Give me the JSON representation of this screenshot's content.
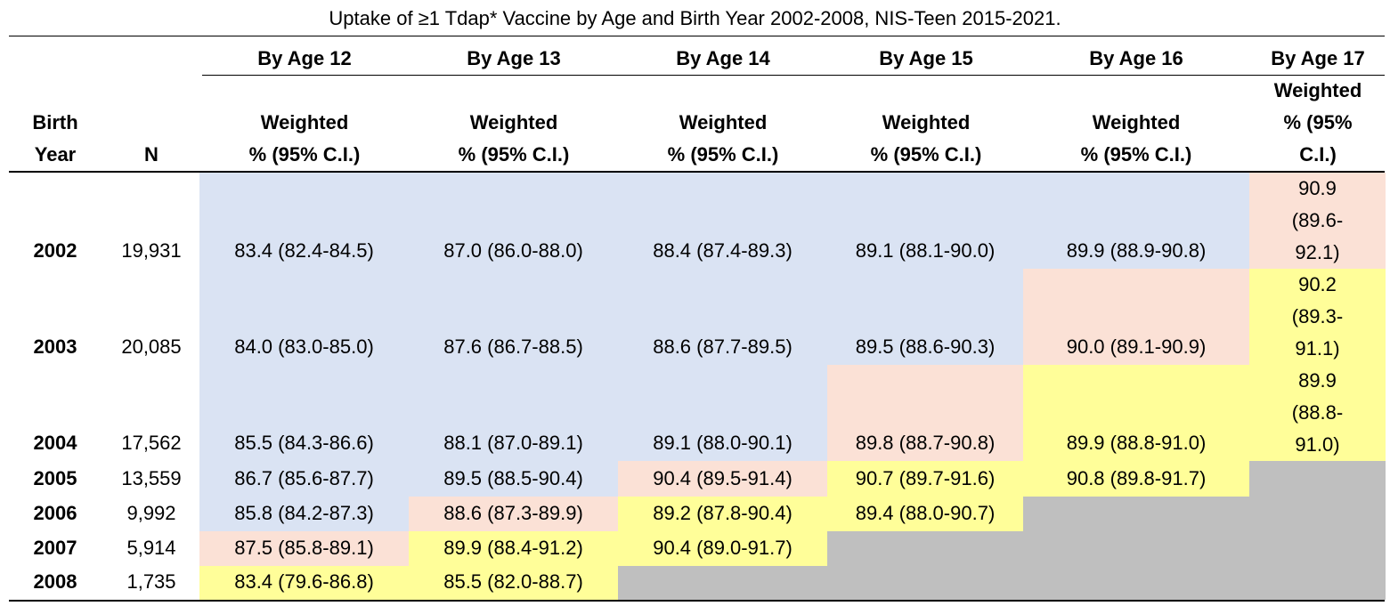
{
  "title": "Uptake of ≥1 Tdap* Vaccine by Age and Birth Year 2002-2008, NIS-Teen 2015-2021.",
  "colors": {
    "blue": "#dae3f3",
    "salmon": "#fbe1d6",
    "yellow": "#fffe99",
    "gray": "#bfbfbf"
  },
  "header": {
    "birth_year": [
      "Birth",
      "Year"
    ],
    "n": "N",
    "ages": [
      "By Age 12",
      "By Age 13",
      "By Age 14",
      "By Age 15",
      "By Age 16",
      "By Age 17"
    ],
    "weighted": [
      "Weighted",
      "% (95% C.I.)"
    ],
    "weighted17": [
      "Weighted",
      "% (95%",
      "C.I.)"
    ]
  },
  "rows": [
    {
      "year": "2002",
      "n": "19,931",
      "values": [
        "83.4 (82.4-84.5)",
        "87.0 (86.0-88.0)",
        "88.4 (87.4-89.3)",
        "89.1 (88.1-90.0)",
        "89.9 (88.9-90.8)"
      ],
      "age17": [
        "90.9",
        "(89.6-",
        "92.1)"
      ]
    },
    {
      "year": "2003",
      "n": "20,085",
      "values": [
        "84.0 (83.0-85.0)",
        "87.6 (86.7-88.5)",
        "88.6 (87.7-89.5)",
        "89.5 (88.6-90.3)",
        "90.0 (89.1-90.9)"
      ],
      "age17": [
        "90.2",
        "(89.3-",
        "91.1)"
      ]
    },
    {
      "year": "2004",
      "n": "17,562",
      "values": [
        "85.5 (84.3-86.6)",
        "88.1 (87.0-89.1)",
        "89.1 (88.0-90.1)",
        "89.8 (88.7-90.8)",
        "89.9 (88.8-91.0)"
      ],
      "age17": [
        "89.9",
        "(88.8-",
        "91.0)"
      ]
    },
    {
      "year": "2005",
      "n": "13,559",
      "values": [
        "86.7 (85.6-87.7)",
        "89.5 (88.5-90.4)",
        "90.4 (89.5-91.4)",
        "90.7 (89.7-91.6)",
        "90.8 (89.8-91.7)"
      ]
    },
    {
      "year": "2006",
      "n": "9,992",
      "values": [
        "85.8 (84.2-87.3)",
        "88.6 (87.3-89.9)",
        "89.2 (87.8-90.4)",
        "89.4 (88.0-90.7)"
      ]
    },
    {
      "year": "2007",
      "n": "5,914",
      "values": [
        "87.5 (85.8-89.1)",
        "89.9 (88.4-91.2)",
        "90.4 (89.0-91.7)"
      ]
    },
    {
      "year": "2008",
      "n": "1,735",
      "values": [
        "83.4 (79.6-86.8)",
        "85.5 (82.0-88.7)"
      ]
    }
  ]
}
